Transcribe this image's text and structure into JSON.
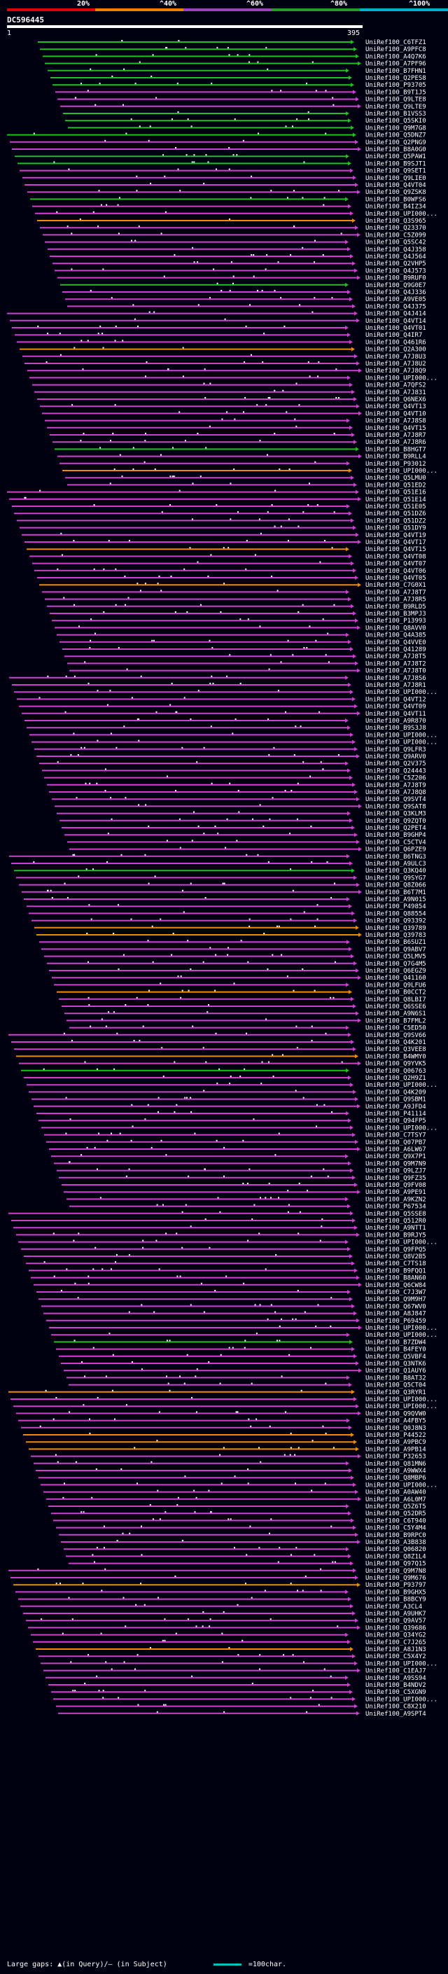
{
  "scale": {
    "labels": [
      "20%",
      "^40%",
      "^60%",
      "^80%",
      "^100%"
    ],
    "colors": [
      "#e00000",
      "#f08000",
      "#a040c0",
      "#20a020",
      "#00b0d0"
    ]
  },
  "query": {
    "name": "DC596445",
    "start": "1",
    "end": "395"
  },
  "hits": [
    {
      "id": "UniRef100_C6TFZ1",
      "color": "green"
    },
    {
      "id": "UniRef100_A9PFC8",
      "color": "green"
    },
    {
      "id": "UniRef100_A4Q7K6",
      "color": "green"
    },
    {
      "id": "UniRef100_A7PF96",
      "color": "green"
    },
    {
      "id": "UniRef100_B7FHN1",
      "color": "green"
    },
    {
      "id": "UniRef100_Q2PES8",
      "color": "green"
    },
    {
      "id": "UniRef100_P93705",
      "color": "green"
    },
    {
      "id": "UniRef100_B9T1J5",
      "color": "magenta"
    },
    {
      "id": "UniRef100_Q9LTE8",
      "color": "magenta"
    },
    {
      "id": "UniRef100_Q9LTE9",
      "color": "magenta"
    },
    {
      "id": "UniRef100_B1VSS3",
      "color": "green"
    },
    {
      "id": "UniRef100_Q5SKI0",
      "color": "green"
    },
    {
      "id": "UniRef100_Q9M7G8",
      "color": "green"
    },
    {
      "id": "UniRef100_Q5DNZ7",
      "color": "green"
    },
    {
      "id": "UniRef100_Q2PNG9",
      "color": "magenta"
    },
    {
      "id": "UniRef100_B8A0G0",
      "color": "magenta"
    },
    {
      "id": "UniRef100_Q5PAW1",
      "color": "green"
    },
    {
      "id": "UniRef100_B9SJT1",
      "color": "green"
    },
    {
      "id": "UniRef100_Q9SET1",
      "color": "magenta"
    },
    {
      "id": "UniRef100_Q9LIE0",
      "color": "magenta"
    },
    {
      "id": "UniRef100_Q4VT04",
      "color": "magenta"
    },
    {
      "id": "UniRef100_Q9ZSK8",
      "color": "magenta"
    },
    {
      "id": "UniRef100_B0WFS6",
      "color": "green"
    },
    {
      "id": "UniRef100_B4IZ34",
      "color": "magenta"
    },
    {
      "id": "UniRef100_UPI000...",
      "color": "magenta"
    },
    {
      "id": "UniRef100_Q3S965",
      "color": "orange"
    },
    {
      "id": "UniRef100_Q23370",
      "color": "magenta"
    },
    {
      "id": "UniRef100_C5Z099",
      "color": "magenta"
    },
    {
      "id": "UniRef100_Q5SC42",
      "color": "magenta"
    },
    {
      "id": "UniRef100_Q4J358",
      "color": "magenta"
    },
    {
      "id": "UniRef100_Q4J564",
      "color": "magenta"
    },
    {
      "id": "UniRef100_Q2VHP5",
      "color": "magenta"
    },
    {
      "id": "UniRef100_Q4J573",
      "color": "magenta"
    },
    {
      "id": "UniRef100_B9RUF0",
      "color": "magenta"
    },
    {
      "id": "UniRef100_Q9G0E7",
      "color": "green"
    },
    {
      "id": "UniRef100_Q4J336",
      "color": "magenta"
    },
    {
      "id": "UniRef100_A9VE05",
      "color": "magenta"
    },
    {
      "id": "UniRef100_Q4J375",
      "color": "magenta"
    },
    {
      "id": "UniRef100_Q4J414",
      "color": "magenta"
    },
    {
      "id": "UniRef100_Q4VT14",
      "color": "magenta"
    },
    {
      "id": "UniRef100_Q4VT01",
      "color": "magenta"
    },
    {
      "id": "UniRef100_Q4IR7",
      "color": "magenta"
    },
    {
      "id": "UniRef100_Q461R6",
      "color": "magenta"
    },
    {
      "id": "UniRef100_Q2A300",
      "color": "orange"
    },
    {
      "id": "UniRef100_A7J8U3",
      "color": "magenta"
    },
    {
      "id": "UniRef100_A7J8U2",
      "color": "magenta"
    },
    {
      "id": "UniRef100_A7J8Q9",
      "color": "magenta"
    },
    {
      "id": "UniRef100_UPI000...",
      "color": "magenta"
    },
    {
      "id": "UniRef100_A7QFS2",
      "color": "magenta"
    },
    {
      "id": "UniRef100_A7J831",
      "color": "magenta"
    },
    {
      "id": "UniRef100_Q6NEX6",
      "color": "magenta"
    },
    {
      "id": "UniRef100_Q4VT13",
      "color": "magenta"
    },
    {
      "id": "UniRef100_Q4VT10",
      "color": "magenta"
    },
    {
      "id": "UniRef100_A7J8S8",
      "color": "magenta"
    },
    {
      "id": "UniRef100_Q4VT15",
      "color": "magenta"
    },
    {
      "id": "UniRef100_A7J8R7",
      "color": "magenta"
    },
    {
      "id": "UniRef100_A7J8R6",
      "color": "magenta"
    },
    {
      "id": "UniRef100_B8HGT7",
      "color": "green"
    },
    {
      "id": "UniRef100_B9RLL4",
      "color": "magenta"
    },
    {
      "id": "UniRef100_P93012",
      "color": "magenta"
    },
    {
      "id": "UniRef100_UPI000...",
      "color": "orange"
    },
    {
      "id": "UniRef100_Q5LMU0",
      "color": "magenta"
    },
    {
      "id": "UniRef100_Q51ED2",
      "color": "magenta"
    },
    {
      "id": "UniRef100_Q51E16",
      "color": "magenta"
    },
    {
      "id": "UniRef100_Q51E14",
      "color": "magenta"
    },
    {
      "id": "UniRef100_Q51E05",
      "color": "magenta"
    },
    {
      "id": "UniRef100_Q51DZ6",
      "color": "magenta"
    },
    {
      "id": "UniRef100_Q51DZ2",
      "color": "magenta"
    },
    {
      "id": "UniRef100_Q51DY9",
      "color": "magenta"
    },
    {
      "id": "UniRef100_Q4VT19",
      "color": "magenta"
    },
    {
      "id": "UniRef100_Q4VT17",
      "color": "magenta"
    },
    {
      "id": "UniRef100_Q4VT15",
      "color": "orange"
    },
    {
      "id": "UniRef100_Q4VT08",
      "color": "magenta"
    },
    {
      "id": "UniRef100_Q4VT07",
      "color": "magenta"
    },
    {
      "id": "UniRef100_Q4VT06",
      "color": "magenta"
    },
    {
      "id": "UniRef100_Q4VT05",
      "color": "magenta"
    },
    {
      "id": "UniRef100_C7G0X1",
      "color": "orange"
    },
    {
      "id": "UniRef100_A7J8T7",
      "color": "magenta"
    },
    {
      "id": "UniRef100_A7J8R5",
      "color": "magenta"
    },
    {
      "id": "UniRef100_B9RLD5",
      "color": "magenta"
    },
    {
      "id": "UniRef100_B3MPJ3",
      "color": "magenta"
    },
    {
      "id": "UniRef100_P13993",
      "color": "magenta"
    },
    {
      "id": "UniRef100_Q8AVV0",
      "color": "magenta"
    },
    {
      "id": "UniRef100_Q4A385",
      "color": "magenta"
    },
    {
      "id": "UniRef100_Q4VVE0",
      "color": "magenta"
    },
    {
      "id": "UniRef100_Q41289",
      "color": "magenta"
    },
    {
      "id": "UniRef100_A7J8T5",
      "color": "magenta"
    },
    {
      "id": "UniRef100_A7J8T2",
      "color": "magenta"
    },
    {
      "id": "UniRef100_A7J8T0",
      "color": "magenta"
    },
    {
      "id": "UniRef100_A7J8S6",
      "color": "magenta"
    },
    {
      "id": "UniRef100_A7J8R1",
      "color": "magenta"
    },
    {
      "id": "UniRef100_UPI000...",
      "color": "magenta"
    },
    {
      "id": "UniRef100_Q4VT12",
      "color": "magenta"
    },
    {
      "id": "UniRef100_Q4VT09",
      "color": "magenta"
    },
    {
      "id": "UniRef100_Q4VT11",
      "color": "magenta"
    },
    {
      "id": "UniRef100_A9R870",
      "color": "magenta"
    },
    {
      "id": "UniRef100_B9S3J8",
      "color": "magenta"
    },
    {
      "id": "UniRef100_UPI000...",
      "color": "magenta"
    },
    {
      "id": "UniRef100_UPI000...",
      "color": "magenta"
    },
    {
      "id": "UniRef100_Q9LFR3",
      "color": "magenta"
    },
    {
      "id": "UniRef100_Q9ARV0",
      "color": "magenta"
    },
    {
      "id": "UniRef100_Q2V375",
      "color": "magenta"
    },
    {
      "id": "UniRef100_Q24443",
      "color": "magenta"
    },
    {
      "id": "UniRef100_C5Z206",
      "color": "magenta"
    },
    {
      "id": "UniRef100_A7J8T9",
      "color": "magenta"
    },
    {
      "id": "UniRef100_A7J8Q8",
      "color": "magenta"
    },
    {
      "id": "UniRef100_Q9SVT4",
      "color": "magenta"
    },
    {
      "id": "UniRef100_Q9SAT8",
      "color": "magenta"
    },
    {
      "id": "UniRef100_Q3KLM3",
      "color": "magenta"
    },
    {
      "id": "UniRef100_Q9ZQT0",
      "color": "magenta"
    },
    {
      "id": "UniRef100_Q2PET4",
      "color": "magenta"
    },
    {
      "id": "UniRef100_B9GHP4",
      "color": "magenta"
    },
    {
      "id": "UniRef100_C5CTV4",
      "color": "magenta"
    },
    {
      "id": "UniRef100_Q6PZE9",
      "color": "magenta"
    },
    {
      "id": "UniRef100_B6TNG3",
      "color": "magenta"
    },
    {
      "id": "UniRef100_A9ULC3",
      "color": "magenta"
    },
    {
      "id": "UniRef100_Q3KQ40",
      "color": "green"
    },
    {
      "id": "UniRef100_Q9SYG7",
      "color": "magenta"
    },
    {
      "id": "UniRef100_Q8Z066",
      "color": "magenta"
    },
    {
      "id": "UniRef100_B6T7M1",
      "color": "magenta"
    },
    {
      "id": "UniRef100_A9N015",
      "color": "magenta"
    },
    {
      "id": "UniRef100_P49854",
      "color": "magenta"
    },
    {
      "id": "UniRef100_Q88554",
      "color": "magenta"
    },
    {
      "id": "UniRef100_Q93392",
      "color": "magenta"
    },
    {
      "id": "UniRef100_Q39789",
      "color": "orange"
    },
    {
      "id": "UniRef100_Q39783",
      "color": "orange"
    },
    {
      "id": "UniRef100_B6SUZ1",
      "color": "magenta"
    },
    {
      "id": "UniRef100_Q9ABV7",
      "color": "magenta"
    },
    {
      "id": "UniRef100_Q5LMV5",
      "color": "magenta"
    },
    {
      "id": "UniRef100_Q7G4M5",
      "color": "magenta"
    },
    {
      "id": "UniRef100_Q6EGZ9",
      "color": "magenta"
    },
    {
      "id": "UniRef100_Q41160",
      "color": "magenta"
    },
    {
      "id": "UniRef100_Q9LFU6",
      "color": "magenta"
    },
    {
      "id": "UniRef100_B0CCT2",
      "color": "orange"
    },
    {
      "id": "UniRef100_Q8LBI7",
      "color": "magenta"
    },
    {
      "id": "UniRef100_Q6SSE6",
      "color": "magenta"
    },
    {
      "id": "UniRef100_A9N6S1",
      "color": "magenta"
    },
    {
      "id": "UniRef100_B7FML2",
      "color": "magenta"
    },
    {
      "id": "UniRef100_C5ED50",
      "color": "magenta"
    },
    {
      "id": "UniRef100_Q9SV66",
      "color": "magenta"
    },
    {
      "id": "UniRef100_Q4K201",
      "color": "magenta"
    },
    {
      "id": "UniRef100_Q3VEE8",
      "color": "magenta"
    },
    {
      "id": "UniRef100_B4WMY0",
      "color": "orange"
    },
    {
      "id": "UniRef100_Q9YVK5",
      "color": "magenta"
    },
    {
      "id": "UniRef100_Q06763",
      "color": "green"
    },
    {
      "id": "UniRef100_Q2H9Z1",
      "color": "magenta"
    },
    {
      "id": "UniRef100_UPI000...",
      "color": "magenta"
    },
    {
      "id": "UniRef100_Q4K209",
      "color": "magenta"
    },
    {
      "id": "UniRef100_Q9SBM1",
      "color": "magenta"
    },
    {
      "id": "UniRef100_A9JFD4",
      "color": "magenta"
    },
    {
      "id": "UniRef100_P41114",
      "color": "magenta"
    },
    {
      "id": "UniRef100_Q94FP5",
      "color": "magenta"
    },
    {
      "id": "UniRef100_UPI000...",
      "color": "magenta"
    },
    {
      "id": "UniRef100_C7TSY7",
      "color": "magenta"
    },
    {
      "id": "UniRef100_Q07PB7",
      "color": "magenta"
    },
    {
      "id": "UniRef100_A6LW67",
      "color": "magenta"
    },
    {
      "id": "UniRef100_Q9X7P1",
      "color": "magenta"
    },
    {
      "id": "UniRef100_Q9M7N9",
      "color": "magenta"
    },
    {
      "id": "UniRef100_Q9LZJ7",
      "color": "magenta"
    },
    {
      "id": "UniRef100_Q9FZ35",
      "color": "magenta"
    },
    {
      "id": "UniRef100_Q9FV08",
      "color": "magenta"
    },
    {
      "id": "UniRef100_A9PE91",
      "color": "magenta"
    },
    {
      "id": "UniRef100_A9KZN2",
      "color": "magenta"
    },
    {
      "id": "UniRef100_P67534",
      "color": "magenta"
    },
    {
      "id": "UniRef100_Q5SSE8",
      "color": "magenta"
    },
    {
      "id": "UniRef100_Q512R0",
      "color": "magenta"
    },
    {
      "id": "UniRef100_A9NTT1",
      "color": "magenta"
    },
    {
      "id": "UniRef100_B9RJY5",
      "color": "magenta"
    },
    {
      "id": "UniRef100_UPI000...",
      "color": "magenta"
    },
    {
      "id": "UniRef100_Q9FPQ5",
      "color": "magenta"
    },
    {
      "id": "UniRef100_Q8V2B5",
      "color": "magenta"
    },
    {
      "id": "UniRef100_C7TS18",
      "color": "magenta"
    },
    {
      "id": "UniRef100_B9FQQ1",
      "color": "magenta"
    },
    {
      "id": "UniRef100_B8AN60",
      "color": "magenta"
    },
    {
      "id": "UniRef100_Q6CW84",
      "color": "magenta"
    },
    {
      "id": "UniRef100_C7J3W7",
      "color": "magenta"
    },
    {
      "id": "UniRef100_Q9M9H7",
      "color": "magenta"
    },
    {
      "id": "UniRef100_Q67WV0",
      "color": "magenta"
    },
    {
      "id": "UniRef100_A8J847",
      "color": "magenta"
    },
    {
      "id": "UniRef100_P69459",
      "color": "magenta"
    },
    {
      "id": "UniRef100_UPI000...",
      "color": "magenta"
    },
    {
      "id": "UniRef100_UPI000...",
      "color": "magenta"
    },
    {
      "id": "UniRef100_B7ZDW4",
      "color": "green"
    },
    {
      "id": "UniRef100_B4FEY0",
      "color": "magenta"
    },
    {
      "id": "UniRef100_Q5VBF4",
      "color": "magenta"
    },
    {
      "id": "UniRef100_Q3NTK6",
      "color": "magenta"
    },
    {
      "id": "UniRef100_Q1AUY6",
      "color": "magenta"
    },
    {
      "id": "UniRef100_B8AT32",
      "color": "magenta"
    },
    {
      "id": "UniRef100_Q5CT04",
      "color": "magenta"
    },
    {
      "id": "UniRef100_Q3RYR1",
      "color": "orange"
    },
    {
      "id": "UniRef100_UPI000...",
      "color": "magenta"
    },
    {
      "id": "UniRef100_UPI000...",
      "color": "magenta"
    },
    {
      "id": "UniRef100_Q9QVW0",
      "color": "magenta"
    },
    {
      "id": "UniRef100_A4FBY5",
      "color": "magenta"
    },
    {
      "id": "UniRef100_Q0J8N3",
      "color": "magenta"
    },
    {
      "id": "UniRef100_P44522",
      "color": "orange"
    },
    {
      "id": "UniRef100_A9PBC9",
      "color": "orange"
    },
    {
      "id": "UniRef100_A9PB14",
      "color": "orange"
    },
    {
      "id": "UniRef100_P32653",
      "color": "magenta"
    },
    {
      "id": "UniRef100_Q81MN6",
      "color": "magenta"
    },
    {
      "id": "UniRef100_A9WWX4",
      "color": "magenta"
    },
    {
      "id": "UniRef100_Q8MBP6",
      "color": "magenta"
    },
    {
      "id": "UniRef100_UPI000...",
      "color": "magenta"
    },
    {
      "id": "UniRef100_A0AW40",
      "color": "magenta"
    },
    {
      "id": "UniRef100_A6L0M7",
      "color": "magenta"
    },
    {
      "id": "UniRef100_Q5Z6T5",
      "color": "magenta"
    },
    {
      "id": "UniRef100_Q52DR5",
      "color": "magenta"
    },
    {
      "id": "UniRef100_C6T940",
      "color": "magenta"
    },
    {
      "id": "UniRef100_C5Y4M4",
      "color": "magenta"
    },
    {
      "id": "UniRef100_B9RPC0",
      "color": "magenta"
    },
    {
      "id": "UniRef100_A3B838",
      "color": "magenta"
    },
    {
      "id": "UniRef100_Q06820",
      "color": "magenta"
    },
    {
      "id": "UniRef100_Q8Z1L4",
      "color": "magenta"
    },
    {
      "id": "UniRef100_Q97Q15",
      "color": "magenta"
    },
    {
      "id": "UniRef100_Q9M7N8",
      "color": "magenta"
    },
    {
      "id": "UniRef100_Q9M676",
      "color": "magenta"
    },
    {
      "id": "UniRef100_P93797",
      "color": "orange"
    },
    {
      "id": "UniRef100_B9GHX5",
      "color": "magenta"
    },
    {
      "id": "UniRef100_B8BCY9",
      "color": "magenta"
    },
    {
      "id": "UniRef100_A3CL4",
      "color": "magenta"
    },
    {
      "id": "UniRef100_A9UHK7",
      "color": "magenta"
    },
    {
      "id": "UniRef100_Q9AV57",
      "color": "magenta"
    },
    {
      "id": "UniRef100_Q39686",
      "color": "magenta"
    },
    {
      "id": "UniRef100_Q34YG2",
      "color": "magenta"
    },
    {
      "id": "UniRef100_C7J265",
      "color": "magenta"
    },
    {
      "id": "UniRef100_A8J1N3",
      "color": "orange"
    },
    {
      "id": "UniRef100_C5X4Y2",
      "color": "magenta"
    },
    {
      "id": "UniRef100_UPI000...",
      "color": "magenta"
    },
    {
      "id": "UniRef100_C1EAJ7",
      "color": "magenta"
    },
    {
      "id": "UniRef100_A9SS94",
      "color": "magenta"
    },
    {
      "id": "UniRef100_B4NDV2",
      "color": "magenta"
    },
    {
      "id": "UniRef100_C5XGN9",
      "color": "magenta"
    },
    {
      "id": "UniRef100_UPI000...",
      "color": "magenta"
    },
    {
      "id": "UniRef100_C8X210",
      "color": "magenta"
    },
    {
      "id": "UniRef100_A9SPT4",
      "color": "magenta"
    }
  ],
  "footer": {
    "text": "Large gaps: ▲(in Query)/— (in Subject)",
    "legend": "=100char."
  }
}
